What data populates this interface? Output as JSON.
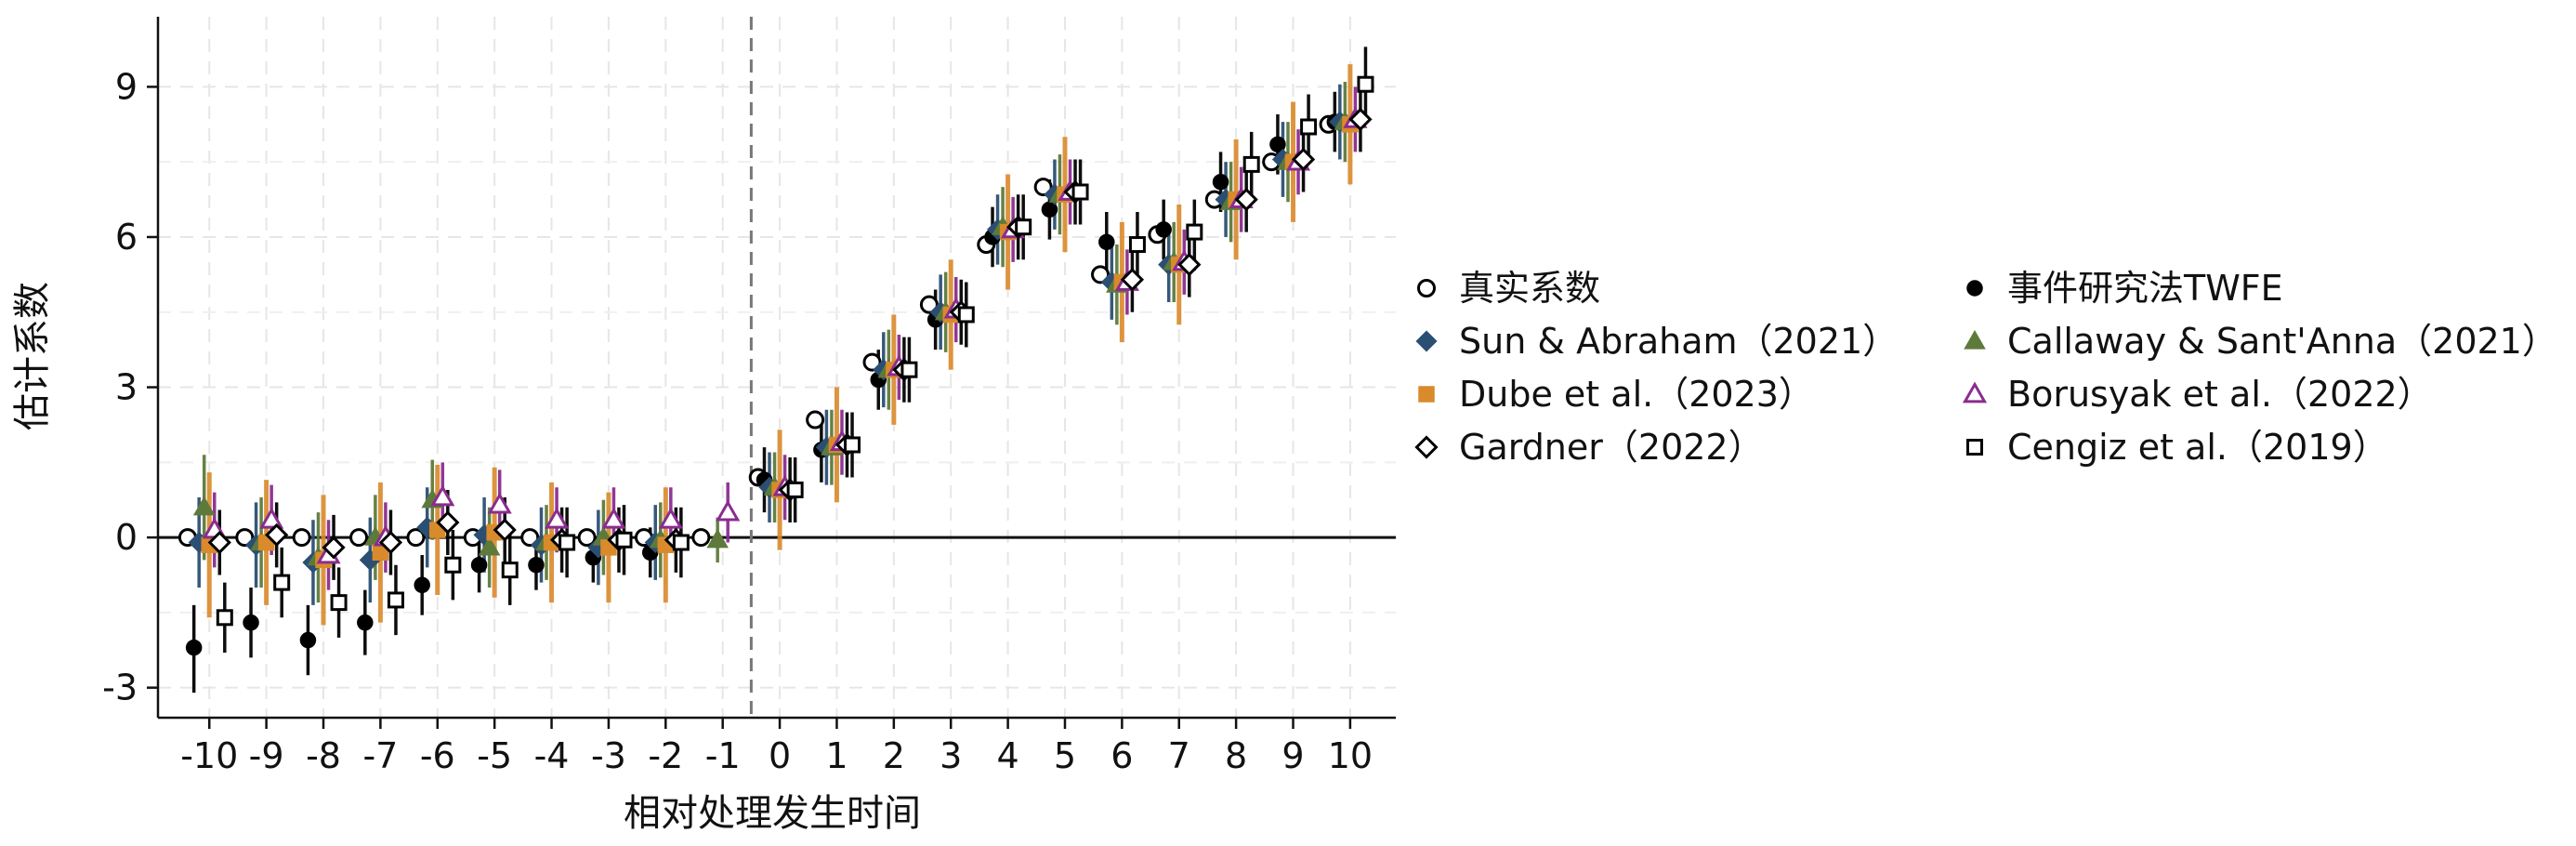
{
  "chart_data": {
    "type": "scatter",
    "title": "",
    "xlabel": "相对处理发生时间",
    "ylabel": "估计系数",
    "x_ticks": [
      -10,
      -9,
      -8,
      -7,
      -6,
      -5,
      -4,
      -3,
      -2,
      -1,
      0,
      1,
      2,
      3,
      4,
      5,
      6,
      7,
      8,
      9,
      10
    ],
    "y_ticks": [
      -3,
      0,
      3,
      6,
      9
    ],
    "y_tick_labels": [
      "-3",
      "0",
      "3",
      "6",
      "9"
    ],
    "xlim": [
      -10.9,
      10.8
    ],
    "ylim": [
      -3.6,
      10.4
    ],
    "grid": true,
    "reference_line_y": 0,
    "treatment_line_x": -0.5,
    "legend_position": "right",
    "series": [
      {
        "name": "真实系数",
        "marker": "circle-open",
        "color": "#000000",
        "x": [
          -10,
          -9,
          -8,
          -7,
          -6,
          -5,
          -4,
          -3,
          -2,
          -1,
          0,
          1,
          2,
          3,
          4,
          5,
          6,
          7,
          8,
          9,
          10
        ],
        "y": [
          0,
          0,
          0,
          0,
          0,
          0,
          0,
          0,
          0,
          0,
          1.2,
          2.35,
          3.5,
          4.65,
          5.85,
          7.0,
          5.25,
          6.05,
          6.75,
          7.5,
          8.25
        ],
        "ci_low": [],
        "ci_high": []
      },
      {
        "name": "事件研究法TWFE",
        "marker": "circle",
        "color": "#000000",
        "x": [
          -10,
          -9,
          -8,
          -7,
          -6,
          -5,
          -4,
          -3,
          -2,
          0,
          1,
          2,
          3,
          4,
          5,
          6,
          7,
          8,
          9,
          10
        ],
        "y": [
          -2.2,
          -1.7,
          -2.05,
          -1.7,
          -0.95,
          -0.55,
          -0.55,
          -0.4,
          -0.3,
          1.15,
          1.75,
          3.15,
          4.35,
          6.0,
          6.55,
          5.9,
          6.15,
          7.1,
          7.85,
          8.3
        ],
        "ci_low": [
          -3.1,
          -2.4,
          -2.75,
          -2.35,
          -1.55,
          -1.1,
          -1.05,
          -0.9,
          -0.8,
          0.5,
          1.1,
          2.55,
          3.75,
          5.4,
          5.95,
          5.3,
          5.55,
          6.5,
          7.25,
          7.7
        ],
        "ci_high": [
          -1.35,
          -1.0,
          -1.35,
          -1.05,
          -0.35,
          0.0,
          -0.05,
          0.1,
          0.2,
          1.8,
          2.4,
          3.75,
          4.95,
          6.6,
          7.15,
          6.5,
          6.75,
          7.7,
          8.45,
          8.9
        ]
      },
      {
        "name": "Sun & Abraham（2021）",
        "marker": "diamond",
        "color": "#2b4f73",
        "x": [
          -10,
          -9,
          -8,
          -7,
          -6,
          -5,
          -4,
          -3,
          -2,
          0,
          1,
          2,
          3,
          4,
          5,
          6,
          7,
          8,
          9,
          10
        ],
        "y": [
          -0.1,
          -0.15,
          -0.5,
          -0.45,
          0.2,
          0.05,
          -0.15,
          -0.2,
          -0.1,
          1.0,
          1.8,
          3.35,
          4.5,
          6.15,
          6.85,
          5.1,
          5.45,
          6.75,
          7.55,
          8.3
        ],
        "ci_low": [
          -1.0,
          -1.0,
          -1.35,
          -1.3,
          -0.6,
          -0.7,
          -0.9,
          -0.95,
          -0.85,
          0.3,
          1.05,
          2.6,
          3.75,
          5.45,
          6.15,
          4.35,
          4.7,
          6.0,
          6.8,
          7.55
        ],
        "ci_high": [
          0.8,
          0.7,
          0.35,
          0.4,
          1.0,
          0.8,
          0.6,
          0.55,
          0.65,
          1.7,
          2.55,
          4.1,
          5.25,
          6.85,
          7.55,
          5.85,
          6.2,
          7.5,
          8.3,
          9.05
        ]
      },
      {
        "name": "Callaway & Sant'Anna（2021）",
        "marker": "triangle",
        "color": "#5d7a3a",
        "x": [
          -10,
          -9,
          -8,
          -7,
          -6,
          -5,
          -4,
          -3,
          -2,
          -1,
          0,
          1,
          2,
          3,
          4,
          5,
          6,
          7,
          8,
          9,
          10
        ],
        "y": [
          0.6,
          -0.1,
          -0.4,
          0.0,
          0.75,
          -0.2,
          -0.1,
          0.0,
          -0.05,
          -0.05,
          1.0,
          1.8,
          3.35,
          4.5,
          6.2,
          6.85,
          5.05,
          5.5,
          6.7,
          7.5,
          8.3
        ],
        "ci_low": [
          -0.45,
          -1.0,
          -1.3,
          -0.85,
          -0.05,
          -1.0,
          -0.85,
          -0.75,
          -0.8,
          -0.5,
          0.3,
          1.05,
          2.55,
          3.7,
          5.4,
          6.05,
          4.25,
          4.7,
          5.9,
          6.7,
          7.5
        ],
        "ci_high": [
          1.65,
          0.8,
          0.5,
          0.85,
          1.55,
          0.6,
          0.65,
          0.75,
          0.7,
          0.4,
          1.7,
          2.55,
          4.15,
          5.3,
          7.0,
          7.65,
          5.85,
          6.3,
          7.5,
          8.3,
          9.1
        ]
      },
      {
        "name": "Dube et al.（2023）",
        "marker": "square",
        "color": "#d98a2b",
        "x": [
          -10,
          -9,
          -8,
          -7,
          -6,
          -5,
          -4,
          -3,
          -2,
          0,
          1,
          2,
          3,
          4,
          5,
          6,
          7,
          8,
          9,
          10
        ],
        "y": [
          -0.15,
          -0.1,
          -0.45,
          -0.3,
          0.15,
          0.1,
          -0.1,
          -0.2,
          -0.15,
          0.95,
          1.85,
          3.35,
          4.45,
          6.1,
          6.85,
          5.1,
          5.45,
          6.75,
          7.5,
          8.25
        ],
        "ci_low": [
          -1.6,
          -1.35,
          -1.75,
          -1.7,
          -1.15,
          -1.2,
          -1.3,
          -1.3,
          -1.3,
          -0.25,
          0.7,
          2.25,
          3.35,
          4.95,
          5.7,
          3.9,
          4.25,
          5.55,
          6.3,
          7.05
        ],
        "ci_high": [
          1.3,
          1.15,
          0.85,
          1.1,
          1.45,
          1.4,
          1.1,
          0.9,
          1.0,
          2.15,
          3.0,
          4.45,
          5.55,
          7.25,
          8.0,
          6.3,
          6.65,
          7.95,
          8.7,
          9.45
        ]
      },
      {
        "name": "Borusyak et al.（2022）",
        "marker": "triangle-open",
        "color": "#8b2c8f",
        "x": [
          -10,
          -9,
          -8,
          -7,
          -6,
          -5,
          -4,
          -3,
          -2,
          -1,
          0,
          1,
          2,
          3,
          4,
          5,
          6,
          7,
          8,
          9,
          10
        ],
        "y": [
          0.15,
          0.35,
          -0.35,
          0.0,
          0.8,
          0.65,
          0.35,
          0.35,
          0.35,
          0.5,
          1.0,
          1.9,
          3.4,
          4.55,
          6.15,
          6.9,
          5.1,
          5.5,
          6.75,
          7.5,
          8.35
        ],
        "ci_low": [
          -0.6,
          -0.35,
          -1.05,
          -0.7,
          0.1,
          -0.05,
          -0.3,
          -0.3,
          -0.3,
          -0.1,
          0.35,
          1.25,
          2.75,
          3.9,
          5.5,
          6.25,
          4.45,
          4.85,
          6.1,
          6.85,
          7.7
        ],
        "ci_high": [
          0.9,
          1.05,
          0.35,
          0.7,
          1.5,
          1.35,
          1.0,
          1.0,
          1.0,
          1.1,
          1.65,
          2.55,
          4.05,
          5.2,
          6.8,
          7.55,
          5.75,
          6.15,
          7.4,
          8.15,
          9.0
        ]
      },
      {
        "name": "Gardner（2022）",
        "marker": "diamond-open",
        "color": "#000000",
        "x": [
          -10,
          -9,
          -8,
          -7,
          -6,
          -5,
          -4,
          -3,
          -2,
          0,
          1,
          2,
          3,
          4,
          5,
          6,
          7,
          8,
          9,
          10
        ],
        "y": [
          -0.1,
          0.05,
          -0.2,
          -0.1,
          0.3,
          0.15,
          -0.05,
          -0.05,
          -0.05,
          0.95,
          1.85,
          3.35,
          4.5,
          6.2,
          6.9,
          5.15,
          5.45,
          6.75,
          7.55,
          8.35
        ],
        "ci_low": [
          -0.75,
          -0.6,
          -0.85,
          -0.75,
          -0.35,
          -0.5,
          -0.7,
          -0.7,
          -0.7,
          0.3,
          1.2,
          2.7,
          3.85,
          5.55,
          6.25,
          4.5,
          4.8,
          6.1,
          6.9,
          7.7
        ],
        "ci_high": [
          0.55,
          0.7,
          0.45,
          0.55,
          0.95,
          0.8,
          0.6,
          0.6,
          0.6,
          1.6,
          2.5,
          4.0,
          5.15,
          6.85,
          7.55,
          5.8,
          6.1,
          7.4,
          8.2,
          9.0
        ]
      },
      {
        "name": "Cengiz et al.（2019）",
        "marker": "square-open",
        "color": "#000000",
        "x": [
          -10,
          -9,
          -8,
          -7,
          -6,
          -5,
          -4,
          -3,
          -2,
          0,
          1,
          2,
          3,
          4,
          5,
          6,
          7,
          8,
          9,
          10
        ],
        "y": [
          -1.6,
          -0.9,
          -1.3,
          -1.25,
          -0.55,
          -0.65,
          -0.1,
          -0.05,
          -0.1,
          0.95,
          1.85,
          3.35,
          4.45,
          6.2,
          6.9,
          5.85,
          6.1,
          7.45,
          8.2,
          9.05
        ],
        "ci_low": [
          -2.3,
          -1.6,
          -2.0,
          -1.95,
          -1.25,
          -1.35,
          -0.8,
          -0.75,
          -0.8,
          0.3,
          1.2,
          2.7,
          3.8,
          5.55,
          6.25,
          5.2,
          5.45,
          6.8,
          7.55,
          8.3
        ],
        "ci_high": [
          -0.9,
          -0.2,
          -0.6,
          -0.55,
          0.15,
          0.05,
          0.6,
          0.65,
          0.6,
          1.6,
          2.5,
          4.0,
          5.1,
          6.85,
          7.55,
          6.5,
          6.75,
          8.1,
          8.85,
          9.8
        ]
      }
    ]
  }
}
